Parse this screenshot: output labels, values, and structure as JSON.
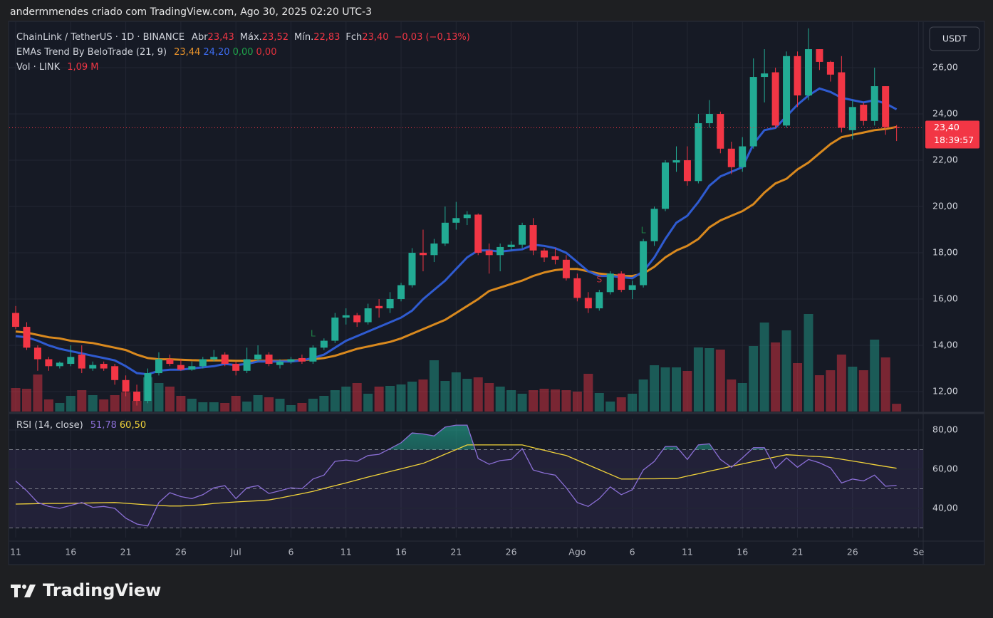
{
  "header": {
    "attribution": "andermmendes criado com TradingView.com, Ago 30, 2025 02:20 UTC-3",
    "currency": "USDT",
    "logo": "TradingView"
  },
  "legend": {
    "symbol": "ChainLink / TetherUS · 1D · BINANCE",
    "open_label": "Abr",
    "open": "23,43",
    "high_label": "Máx.",
    "high": "23,52",
    "low_label": "Mín.",
    "low": "22,83",
    "close_label": "Fch",
    "close": "23,40",
    "change": "−0,03 (−0,13%)",
    "indicator": "EMAs Trend By BeloTrade (21, 9)",
    "ema_slow": "23,44",
    "ema_fast": "24,20",
    "trend_up": "0,00",
    "trend_down": "0,00",
    "volume": "Vol · LINK",
    "volume_value": "1,09 M",
    "rsi": "RSI (14, close)",
    "rsi_value": "51,78",
    "rsi_ma": "60,50"
  },
  "price_tag": {
    "last": "23,40",
    "countdown": "18:39:57"
  },
  "chart_data": [
    {
      "type": "candlestick",
      "x": [
        "2025-06-11",
        "2025-06-12",
        "2025-06-13",
        "2025-06-14",
        "2025-06-15",
        "2025-06-16",
        "2025-06-17",
        "2025-06-18",
        "2025-06-19",
        "2025-06-20",
        "2025-06-21",
        "2025-06-22",
        "2025-06-23",
        "2025-06-24",
        "2025-06-25",
        "2025-06-26",
        "2025-06-27",
        "2025-06-28",
        "2025-06-29",
        "2025-06-30",
        "2025-07-01",
        "2025-07-02",
        "2025-07-03",
        "2025-07-04",
        "2025-07-05",
        "2025-07-06",
        "2025-07-07",
        "2025-07-08",
        "2025-07-09",
        "2025-07-10",
        "2025-07-11",
        "2025-07-12",
        "2025-07-13",
        "2025-07-14",
        "2025-07-15",
        "2025-07-16",
        "2025-07-17",
        "2025-07-18",
        "2025-07-19",
        "2025-07-20",
        "2025-07-21",
        "2025-07-22",
        "2025-07-23",
        "2025-07-24",
        "2025-07-25",
        "2025-07-26",
        "2025-07-27",
        "2025-07-28",
        "2025-07-29",
        "2025-07-30",
        "2025-07-31",
        "2025-08-01",
        "2025-08-02",
        "2025-08-03",
        "2025-08-04",
        "2025-08-05",
        "2025-08-06",
        "2025-08-07",
        "2025-08-08",
        "2025-08-09",
        "2025-08-10",
        "2025-08-11",
        "2025-08-12",
        "2025-08-13",
        "2025-08-14",
        "2025-08-15",
        "2025-08-16",
        "2025-08-17",
        "2025-08-18",
        "2025-08-19",
        "2025-08-20",
        "2025-08-21",
        "2025-08-22",
        "2025-08-23",
        "2025-08-24",
        "2025-08-25",
        "2025-08-26",
        "2025-08-27",
        "2025-08-28",
        "2025-08-29",
        "2025-08-30"
      ],
      "open": [
        15.4,
        14.8,
        13.9,
        13.4,
        13.1,
        13.2,
        13.6,
        13.0,
        13.2,
        13.1,
        12.5,
        12.0,
        11.6,
        12.8,
        13.4,
        13.15,
        12.95,
        13.1,
        13.4,
        13.6,
        13.2,
        12.9,
        13.4,
        13.6,
        13.15,
        13.3,
        13.45,
        13.3,
        13.9,
        14.2,
        15.2,
        15.3,
        15.0,
        15.7,
        15.6,
        16.0,
        16.6,
        18.0,
        17.9,
        18.4,
        19.3,
        19.5,
        19.65,
        18.1,
        17.9,
        18.25,
        18.35,
        19.2,
        18.1,
        17.85,
        17.7,
        16.9,
        16.05,
        15.6,
        16.3,
        17.1,
        16.4,
        16.6,
        18.5,
        19.9,
        21.9,
        22.0,
        21.1,
        23.6,
        24.0,
        22.5,
        21.7,
        22.6,
        25.6,
        25.8,
        23.5,
        26.5,
        24.8,
        26.8,
        26.25,
        25.8,
        23.3,
        24.4,
        23.7,
        25.2,
        23.43
      ],
      "high": [
        15.7,
        15.0,
        14.0,
        13.5,
        13.3,
        14.0,
        14.0,
        13.3,
        13.3,
        13.2,
        12.7,
        12.3,
        13.0,
        13.7,
        13.6,
        13.4,
        13.3,
        13.5,
        13.8,
        13.7,
        13.3,
        13.9,
        14.0,
        13.7,
        13.4,
        13.5,
        13.6,
        14.0,
        14.3,
        15.4,
        15.6,
        15.4,
        15.8,
        16.0,
        16.3,
        16.7,
        18.2,
        19.0,
        18.6,
        20.0,
        20.2,
        19.8,
        19.7,
        18.4,
        18.4,
        18.5,
        19.3,
        19.5,
        18.2,
        18.2,
        17.9,
        17.1,
        16.3,
        16.4,
        17.2,
        17.2,
        16.8,
        18.6,
        20.0,
        22.0,
        22.6,
        22.6,
        24.0,
        24.6,
        24.1,
        22.8,
        23.0,
        26.4,
        26.8,
        26.0,
        26.7,
        26.7,
        27.7,
        26.8,
        26.3,
        26.5,
        24.6,
        24.5,
        26.0,
        25.2,
        23.52
      ],
      "low": [
        14.7,
        13.8,
        12.9,
        12.9,
        13.0,
        13.1,
        12.8,
        12.9,
        12.9,
        12.3,
        11.8,
        11.4,
        11.5,
        12.7,
        13.1,
        12.9,
        12.9,
        13.0,
        13.3,
        13.1,
        12.7,
        12.8,
        13.3,
        13.1,
        13.0,
        13.2,
        13.2,
        13.2,
        13.8,
        14.1,
        14.9,
        14.8,
        14.9,
        15.2,
        15.4,
        15.9,
        16.5,
        17.2,
        17.6,
        18.3,
        19.0,
        19.2,
        17.9,
        17.1,
        17.2,
        18.1,
        18.2,
        17.9,
        17.6,
        17.5,
        16.8,
        15.9,
        15.4,
        15.5,
        16.2,
        16.3,
        16.0,
        16.5,
        18.3,
        19.8,
        21.5,
        20.9,
        21.0,
        23.4,
        22.3,
        21.4,
        21.5,
        22.5,
        24.5,
        23.4,
        23.4,
        24.3,
        24.6,
        25.9,
        25.4,
        23.2,
        22.9,
        23.5,
        23.5,
        23.1,
        22.83
      ],
      "close": [
        14.8,
        13.9,
        13.4,
        13.1,
        13.25,
        13.5,
        13.0,
        13.15,
        13.0,
        12.5,
        12.0,
        11.6,
        12.8,
        13.4,
        13.2,
        12.95,
        13.1,
        13.4,
        13.5,
        13.2,
        12.9,
        13.4,
        13.6,
        13.2,
        13.3,
        13.4,
        13.3,
        13.9,
        14.2,
        15.2,
        15.3,
        15.0,
        15.6,
        15.6,
        16.0,
        16.6,
        18.0,
        17.9,
        18.4,
        19.3,
        19.5,
        19.65,
        18.0,
        17.9,
        18.25,
        18.35,
        19.2,
        18.1,
        17.8,
        17.7,
        16.9,
        16.05,
        15.6,
        16.3,
        17.1,
        16.4,
        16.6,
        18.5,
        19.9,
        21.9,
        22.0,
        21.1,
        23.6,
        24.0,
        22.5,
        21.7,
        22.6,
        25.6,
        25.75,
        23.5,
        26.5,
        24.8,
        26.8,
        26.25,
        25.7,
        23.4,
        24.3,
        23.7,
        25.2,
        23.43,
        23.4
      ],
      "volume": [
        3.3,
        3.2,
        5.2,
        1.7,
        1.2,
        2.2,
        3.0,
        2.3,
        1.7,
        2.3,
        2.7,
        1.5,
        4.8,
        4.0,
        3.5,
        2.2,
        1.8,
        1.3,
        1.3,
        1.2,
        2.2,
        1.4,
        2.3,
        2.0,
        1.8,
        0.9,
        1.2,
        1.8,
        2.2,
        3.0,
        3.5,
        4.0,
        2.5,
        3.5,
        3.6,
        3.8,
        4.2,
        4.5,
        7.2,
        4.3,
        5.5,
        4.6,
        4.8,
        4.0,
        3.5,
        3.0,
        2.5,
        3.0,
        3.2,
        3.1,
        3.0,
        2.8,
        5.3,
        2.6,
        1.4,
        2.0,
        2.5,
        4.5,
        6.5,
        6.2,
        6.2,
        5.7,
        9.0,
        8.9,
        8.7,
        4.5,
        4.0,
        9.2,
        12.5,
        9.7,
        11.4,
        6.8,
        13.7,
        5.1,
        5.8,
        8.0,
        6.3,
        5.8,
        10.1,
        7.6,
        1.09
      ],
      "up_color": "#22ab94",
      "down_color": "#f23645",
      "series": [
        {
          "color": "#d9891e",
          "values": [
            14.6,
            14.55,
            14.45,
            14.35,
            14.3,
            14.2,
            14.15,
            14.1,
            14.0,
            13.9,
            13.8,
            13.6,
            13.45,
            13.4,
            13.4,
            13.38,
            13.36,
            13.35,
            13.35,
            13.35,
            13.33,
            13.33,
            13.33,
            13.33,
            13.33,
            13.35,
            13.36,
            13.4,
            13.45,
            13.55,
            13.7,
            13.85,
            13.95,
            14.05,
            14.15,
            14.3,
            14.5,
            14.7,
            14.9,
            15.1,
            15.4,
            15.7,
            16.0,
            16.35,
            16.5,
            16.65,
            16.8,
            17.0,
            17.15,
            17.25,
            17.3,
            17.3,
            17.2,
            17.1,
            17.05,
            17.0,
            17.0,
            17.1,
            17.4,
            17.8,
            18.1,
            18.3,
            18.6,
            19.1,
            19.4,
            19.6,
            19.8,
            20.1,
            20.6,
            21.0,
            21.2,
            21.6,
            21.9,
            22.3,
            22.7,
            23.0,
            23.1,
            23.2,
            23.3,
            23.35,
            23.44
          ]
        },
        {
          "color": "#2f5bd0",
          "values": [
            14.4,
            14.35,
            14.2,
            14.0,
            13.85,
            13.75,
            13.65,
            13.55,
            13.45,
            13.35,
            13.1,
            12.8,
            12.75,
            12.9,
            12.95,
            12.95,
            13.0,
            13.05,
            13.1,
            13.2,
            13.15,
            13.2,
            13.3,
            13.3,
            13.3,
            13.3,
            13.35,
            13.45,
            13.6,
            13.9,
            14.2,
            14.4,
            14.6,
            14.8,
            15.0,
            15.2,
            15.5,
            16.0,
            16.4,
            16.8,
            17.3,
            17.8,
            18.1,
            18.1,
            18.05,
            18.1,
            18.15,
            18.35,
            18.3,
            18.2,
            18.0,
            17.6,
            17.2,
            17.0,
            17.0,
            16.95,
            16.9,
            17.2,
            17.8,
            18.6,
            19.3,
            19.6,
            20.2,
            20.9,
            21.3,
            21.5,
            21.7,
            22.7,
            23.3,
            23.4,
            23.9,
            24.4,
            24.8,
            25.1,
            24.95,
            24.7,
            24.6,
            24.5,
            24.6,
            24.45,
            24.2
          ]
        }
      ],
      "signals": [
        {
          "label": "L",
          "x": "2025-07-08",
          "y": 14.5,
          "color": "#1e7f45"
        },
        {
          "label": "S",
          "x": "2025-08-03",
          "y": 16.83,
          "color": "#c2303b"
        },
        {
          "label": "L",
          "x": "2025-08-07",
          "y": 18.95,
          "color": "#1e7f45"
        }
      ],
      "xlim": [
        "2025-06-10T10:00:00Z",
        "2025-09-01T10:00:00Z"
      ],
      "xticks": [
        {
          "value": "2025-06-11",
          "label": "11"
        },
        {
          "value": "2025-06-16",
          "label": "16"
        },
        {
          "value": "2025-06-21",
          "label": "21"
        },
        {
          "value": "2025-06-26",
          "label": "26"
        },
        {
          "value": "2025-07-01",
          "label": "Jul"
        },
        {
          "value": "2025-07-06",
          "label": "6"
        },
        {
          "value": "2025-07-11",
          "label": "11"
        },
        {
          "value": "2025-07-16",
          "label": "16"
        },
        {
          "value": "2025-07-21",
          "label": "21"
        },
        {
          "value": "2025-07-26",
          "label": "26"
        },
        {
          "value": "2025-08-01",
          "label": "Ago"
        },
        {
          "value": "2025-08-06",
          "label": "6"
        },
        {
          "value": "2025-08-11",
          "label": "11"
        },
        {
          "value": "2025-08-16",
          "label": "16"
        },
        {
          "value": "2025-08-21",
          "label": "21"
        },
        {
          "value": "2025-08-26",
          "label": "26"
        },
        {
          "value": "2025-09-01",
          "label": "Se"
        }
      ],
      "ylim": [
        11.14,
        27.94
      ],
      "yticks": [
        {
          "value": 12,
          "label": "12,00"
        },
        {
          "value": 14,
          "label": "14,00"
        },
        {
          "value": 16,
          "label": "16,00"
        },
        {
          "value": 18,
          "label": "18,00"
        },
        {
          "value": 20,
          "label": "20,00"
        },
        {
          "value": 22,
          "label": "22,00"
        },
        {
          "value": 24,
          "label": "24,00"
        },
        {
          "value": 26,
          "label": "26,00"
        }
      ],
      "volume_ylim": [
        0,
        54.6
      ],
      "grid": true
    },
    {
      "type": "rsi",
      "series": [
        {
          "color": "#8b6fd6",
          "values": [
            54,
            49,
            43,
            41,
            40,
            41.5,
            43,
            40.5,
            41,
            40,
            35,
            32,
            31,
            43,
            48,
            46,
            45,
            47,
            50.5,
            51.6,
            45,
            50.5,
            51.6,
            47.6,
            49,
            50.5,
            50,
            55,
            57,
            64,
            64.7,
            64,
            67,
            67.6,
            70.5,
            73.5,
            78.5,
            78,
            77,
            81.5,
            82.5,
            82.5,
            65.5,
            62.5,
            64.4,
            65,
            70.5,
            59.6,
            58,
            57,
            50.5,
            43,
            41,
            45,
            51,
            47,
            49.5,
            59.6,
            64,
            71.6,
            71.6,
            65,
            72.4,
            73,
            65,
            61,
            65.8,
            71,
            71,
            60.4,
            65.8,
            61,
            65,
            63.3,
            60.7,
            53,
            55,
            54,
            57,
            51.3,
            51.78
          ]
        },
        {
          "color": "#f2d43a",
          "values": [
            42.2,
            42.3,
            42.4,
            42.5,
            42.5,
            42.6,
            42.7,
            42.8,
            42.9,
            43.0,
            42.6,
            42.2,
            41.8,
            41.5,
            41.2,
            41.2,
            41.5,
            41.9,
            42.5,
            42.9,
            43.3,
            43.6,
            43.9,
            44.3,
            45.3,
            46.4,
            47.5,
            48.7,
            50.2,
            51.6,
            53.0,
            54.5,
            56.0,
            57.4,
            58.8,
            60.2,
            61.6,
            63.0,
            65.3,
            67.7,
            70.0,
            72.4,
            72.4,
            72.4,
            72.4,
            72.4,
            72.4,
            71.0,
            69.7,
            68.3,
            67.0,
            64.6,
            62.2,
            59.8,
            57.4,
            55.0,
            55.0,
            55.1,
            55.1,
            55.2,
            55.2,
            56.5,
            57.7,
            59.0,
            60.2,
            61.5,
            62.7,
            63.9,
            65.1,
            66.3,
            67.4,
            67.1,
            66.7,
            66.4,
            66.0,
            65.1,
            64.2,
            63.3,
            62.3,
            61.4,
            60.5
          ]
        }
      ],
      "levels": [
        70,
        50,
        30
      ],
      "ylim": [
        25.1,
        85.1
      ],
      "yticks": [
        {
          "value": 40,
          "label": "40,00"
        },
        {
          "value": 60,
          "label": "60,00"
        },
        {
          "value": 80,
          "label": "80,00"
        }
      ],
      "grid": true
    }
  ]
}
